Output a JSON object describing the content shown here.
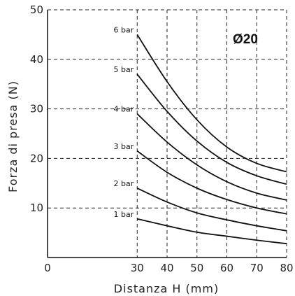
{
  "badge": "Ø20",
  "chart_data": {
    "type": "line",
    "xlabel": "Distanza H (mm)",
    "ylabel": "Forza di presa (N)",
    "xlim": [
      0,
      80
    ],
    "ylim": [
      0,
      50
    ],
    "xticks": [
      0,
      30,
      40,
      50,
      60,
      70,
      80
    ],
    "yticks": [
      10,
      20,
      30,
      40,
      50
    ],
    "grid": true,
    "x": [
      30,
      40,
      50,
      60,
      70,
      80
    ],
    "series": [
      {
        "name": "6 bar",
        "values": [
          45,
          35.5,
          27.8,
          22.3,
          19.0,
          17.3
        ]
      },
      {
        "name": "5 bar",
        "values": [
          37,
          29.5,
          23.5,
          19.2,
          16.5,
          14.8
        ]
      },
      {
        "name": "4 bar",
        "values": [
          29,
          23.3,
          18.7,
          15.3,
          13.0,
          11.6
        ]
      },
      {
        "name": "3 bar",
        "values": [
          21.5,
          17.2,
          14.0,
          11.7,
          10.0,
          8.8
        ]
      },
      {
        "name": "2 bar",
        "values": [
          14,
          11.2,
          9.0,
          7.6,
          6.4,
          5.4
        ]
      },
      {
        "name": "1 bar",
        "values": [
          7.8,
          6.4,
          5.1,
          4.3,
          3.5,
          2.8
        ]
      }
    ]
  }
}
